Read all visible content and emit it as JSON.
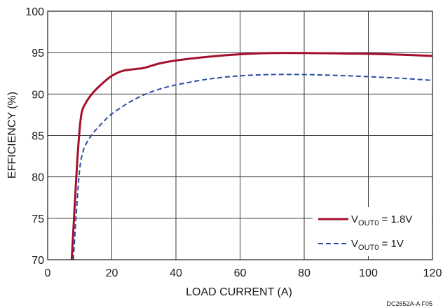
{
  "chart_data": {
    "type": "line",
    "xlabel": "LOAD CURRENT (A)",
    "ylabel": "EFFICIENCY (%)",
    "xlim": [
      0,
      120
    ],
    "ylim": [
      70,
      100
    ],
    "xticks": [
      0,
      20,
      40,
      60,
      80,
      100,
      120
    ],
    "yticks": [
      70,
      75,
      80,
      85,
      90,
      95,
      100
    ],
    "grid": true,
    "legend_position": "bottom-right",
    "series": [
      {
        "name": "V_OUT0 = 1.8V",
        "legend_main": "V",
        "legend_sub": "OUT0",
        "legend_rest": " = 1.8V",
        "color": "#a50f2d",
        "style": "solid",
        "x": [
          7.5,
          8.5,
          9.5,
          10.5,
          12,
          14,
          16,
          18,
          20,
          22,
          24,
          26,
          28,
          30,
          35,
          40,
          50,
          60,
          70,
          80,
          90,
          100,
          110,
          120
        ],
        "y": [
          70,
          77,
          83.5,
          87.5,
          89,
          90.1,
          90.9,
          91.6,
          92.2,
          92.6,
          92.85,
          92.95,
          93.05,
          93.15,
          93.7,
          94.05,
          94.5,
          94.8,
          94.95,
          94.95,
          94.9,
          94.85,
          94.75,
          94.6
        ]
      },
      {
        "name": "V_OUT0 = 1V",
        "legend_main": "V",
        "legend_sub": "OUT0",
        "legend_rest": " = 1V",
        "color": "#2a4ea3",
        "style": "dashed",
        "x": [
          8,
          9,
          10,
          11,
          12,
          14,
          16,
          18,
          20,
          25,
          30,
          35,
          40,
          50,
          60,
          70,
          80,
          90,
          100,
          110,
          120
        ],
        "y": [
          70,
          76,
          81,
          83,
          84,
          85.2,
          86.1,
          86.9,
          87.6,
          88.9,
          89.9,
          90.6,
          91.1,
          91.8,
          92.2,
          92.35,
          92.35,
          92.25,
          92.1,
          91.9,
          91.65
        ]
      }
    ],
    "annotation": "DC2652A-A F05"
  }
}
